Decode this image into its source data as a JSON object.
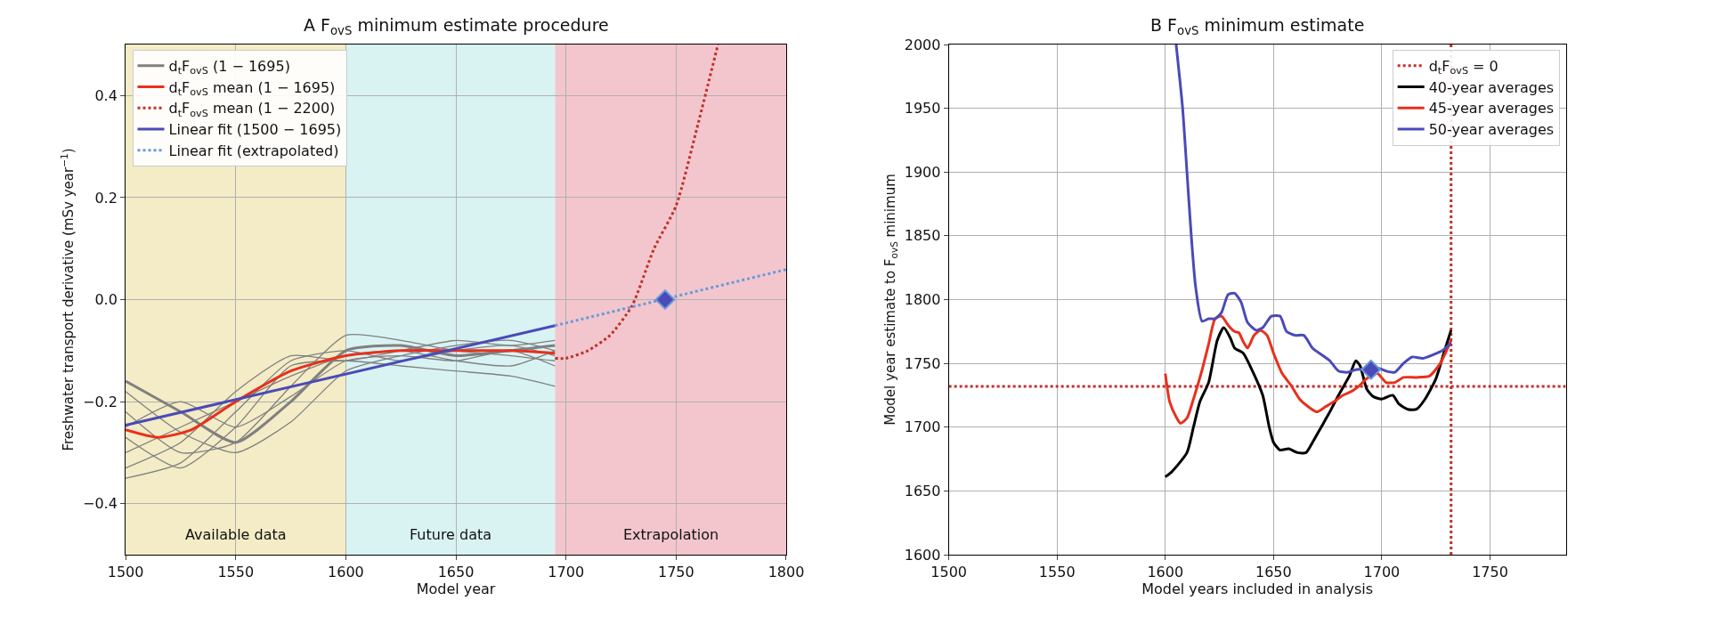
{
  "chart_data": [
    {
      "type": "line",
      "title": "A F$_{ovS}$ minimum estimate procedure",
      "xlabel": "Model year",
      "ylabel": "Freshwater transport derivative (mSv year$^{−1}$)",
      "xlim": [
        1500,
        1800
      ],
      "xticks": [
        1500,
        1550,
        1600,
        1650,
        1700,
        1750,
        1800
      ],
      "ylim": [
        -0.5,
        0.5
      ],
      "yticks": [
        {
          "value": -0.4,
          "label": "−0.4"
        },
        {
          "value": -0.2,
          "label": "−0.2"
        },
        {
          "value": 0,
          "label": "0.0"
        },
        {
          "value": 0.2,
          "label": "0.2"
        },
        {
          "value": 0.4,
          "label": "0.4"
        }
      ],
      "grid": true,
      "legend": "top left",
      "bands": [
        {
          "axis": "x",
          "from": 1500,
          "to": 1600,
          "label": "Available data",
          "color": "#f3ecc6"
        },
        {
          "axis": "x",
          "from": 1600,
          "to": 1695,
          "label": "Future data",
          "color": "#d9f3f3"
        },
        {
          "axis": "x",
          "from": 1695,
          "to": 1800,
          "label": "Extrapolation",
          "color": "#f3c6cd"
        }
      ],
      "series": [
        {
          "name": "d$_{t}$F$_{ovS}$ (1 − 1695)",
          "color": "#808080",
          "x": [
            1500,
            1525,
            1550,
            1575,
            1600,
            1625,
            1650,
            1675,
            1695
          ],
          "values": [
            -0.16,
            -0.22,
            -0.28,
            -0.2,
            -0.1,
            -0.09,
            -0.11,
            -0.1,
            -0.09
          ]
        },
        {
          "color": "#808080",
          "x": [
            1500,
            1525,
            1550,
            1575,
            1600,
            1625,
            1650,
            1675,
            1695
          ],
          "values": [
            -0.35,
            -0.32,
            -0.22,
            -0.12,
            -0.1,
            -0.12,
            -0.1,
            -0.09,
            -0.11
          ]
        },
        {
          "color": "#808080",
          "x": [
            1500,
            1525,
            1550,
            1575,
            1600,
            1625,
            1650,
            1675,
            1695
          ],
          "values": [
            -0.3,
            -0.25,
            -0.2,
            -0.15,
            -0.11,
            -0.1,
            -0.12,
            -0.13,
            -0.1
          ]
        },
        {
          "color": "#808080",
          "x": [
            1500,
            1525,
            1550,
            1575,
            1600,
            1625,
            1650,
            1675,
            1695
          ],
          "values": [
            -0.22,
            -0.3,
            -0.28,
            -0.17,
            -0.07,
            -0.08,
            -0.1,
            -0.11,
            -0.12
          ]
        },
        {
          "color": "#808080",
          "x": [
            1500,
            1525,
            1550,
            1575,
            1600,
            1625,
            1650,
            1675,
            1695
          ],
          "values": [
            -0.27,
            -0.33,
            -0.25,
            -0.13,
            -0.12,
            -0.13,
            -0.14,
            -0.15,
            -0.17
          ]
        },
        {
          "color": "#808080",
          "x": [
            1500,
            1525,
            1550,
            1575,
            1600,
            1625,
            1650,
            1675,
            1695
          ],
          "values": [
            -0.18,
            -0.26,
            -0.3,
            -0.24,
            -0.14,
            -0.11,
            -0.09,
            -0.08,
            -0.1
          ]
        },
        {
          "color": "#808080",
          "x": [
            1500,
            1525,
            1550,
            1575,
            1600,
            1625,
            1650,
            1675,
            1695
          ],
          "values": [
            -0.33,
            -0.28,
            -0.18,
            -0.11,
            -0.12,
            -0.1,
            -0.08,
            -0.09,
            -0.08
          ]
        },
        {
          "color": "#808080",
          "x": [
            1500,
            1525,
            1550,
            1575,
            1600,
            1625,
            1650,
            1675,
            1695
          ],
          "values": [
            -0.25,
            -0.2,
            -0.25,
            -0.19,
            -0.12,
            -0.11,
            -0.12,
            -0.1,
            -0.13
          ]
        },
        {
          "name": "d$_{t}$F$_{ovS}$ mean (1 − 1695)",
          "color": "#e8301c",
          "x": [
            1500,
            1515,
            1530,
            1550,
            1575,
            1600,
            1625,
            1650,
            1675,
            1695
          ],
          "values": [
            -0.255,
            -0.27,
            -0.255,
            -0.2,
            -0.14,
            -0.11,
            -0.1,
            -0.1,
            -0.1,
            -0.105
          ]
        },
        {
          "name": "d$_{t}$F$_{ovS}$ mean (1 − 2200)",
          "color": "#c0302a",
          "line_style": "dotted",
          "x": [
            1695,
            1700,
            1710,
            1720,
            1730,
            1740,
            1750,
            1760,
            1769
          ],
          "values": [
            -0.115,
            -0.115,
            -0.1,
            -0.07,
            -0.012,
            0.1,
            0.184,
            0.345,
            0.5
          ]
        },
        {
          "name": "Linear fit (1500 − 1695)",
          "color": "#4a4ab8",
          "x": [
            1500,
            1695
          ],
          "values": [
            -0.246,
            -0.051
          ]
        },
        {
          "name": "Linear fit (extrapolated)",
          "color": "#6a9ad8",
          "line_style": "dotted",
          "x": [
            1695,
            1800
          ],
          "values": [
            -0.051,
            0.059
          ]
        },
        {
          "type": "scatter",
          "marker": "diamond",
          "color": "#4a4ab8",
          "x": [
            1745
          ],
          "values": [
            0
          ]
        }
      ]
    },
    {
      "type": "line",
      "title": "B F$_{ovS}$ minimum estimate",
      "xlabel": "Model years included in analysis",
      "ylabel": "Model year estimate to F$_{ovS}$ minimum",
      "xlim": [
        1500,
        1785
      ],
      "xticks": [
        1500,
        1550,
        1600,
        1650,
        1700,
        1750
      ],
      "ylim": [
        1600,
        2000
      ],
      "yticks": [
        1600,
        1650,
        1700,
        1750,
        1800,
        1850,
        1900,
        1950,
        2000
      ],
      "grid": true,
      "legend": "top right",
      "series": [
        {
          "name": "d$_{t}$F$_{ovS}$ = 0",
          "color": "#c0302a",
          "line_style": "dotted",
          "x": [
            1732,
            1732
          ],
          "values": [
            1600,
            2000
          ]
        },
        {
          "color": "#c0302a",
          "line_style": "dotted",
          "x": [
            1500,
            1785
          ],
          "values": [
            1732,
            1732
          ]
        },
        {
          "name": "40-year averages",
          "color": "#000000",
          "x": [
            1600,
            1603,
            1610,
            1613,
            1616,
            1620,
            1624,
            1627,
            1630,
            1632,
            1636,
            1640,
            1645,
            1648,
            1650,
            1653,
            1657,
            1661,
            1665,
            1668,
            1672,
            1676,
            1680,
            1685,
            1688,
            1690,
            1693,
            1696,
            1700,
            1705,
            1708,
            1712,
            1716,
            1720,
            1725,
            1729,
            1732
          ],
          "values": [
            1661,
            1665,
            1680,
            1700,
            1720,
            1735,
            1768,
            1778,
            1770,
            1762,
            1758,
            1745,
            1725,
            1700,
            1688,
            1682,
            1683,
            1680,
            1680,
            1688,
            1700,
            1712,
            1725,
            1740,
            1752,
            1748,
            1730,
            1724,
            1722,
            1725,
            1718,
            1714,
            1714,
            1722,
            1738,
            1760,
            1776
          ]
        },
        {
          "name": "45-year averages",
          "color": "#e8301c",
          "x": [
            1600,
            1602,
            1605,
            1607,
            1610,
            1613,
            1617,
            1620,
            1623,
            1626,
            1629,
            1632,
            1634,
            1636,
            1638,
            1641,
            1644,
            1647,
            1650,
            1654,
            1658,
            1662,
            1666,
            1670,
            1674,
            1678,
            1682,
            1686,
            1690,
            1693,
            1698,
            1702,
            1706,
            1710,
            1716,
            1722,
            1727,
            1732
          ],
          "values": [
            1742,
            1720,
            1708,
            1703,
            1707,
            1722,
            1745,
            1765,
            1785,
            1787,
            1780,
            1775,
            1774,
            1767,
            1762,
            1772,
            1776,
            1772,
            1758,
            1742,
            1733,
            1722,
            1716,
            1712,
            1716,
            1720,
            1725,
            1728,
            1733,
            1738,
            1742,
            1735,
            1735,
            1739,
            1739,
            1740,
            1750,
            1768
          ]
        },
        {
          "name": "50-year averages",
          "color": "#4a4ab8",
          "x": [
            1605,
            1608,
            1610,
            1612,
            1614,
            1617,
            1620,
            1623,
            1626,
            1629,
            1632,
            1635,
            1638,
            1642,
            1645,
            1649,
            1653,
            1656,
            1660,
            1664,
            1668,
            1672,
            1676,
            1680,
            1684,
            1688,
            1692,
            1697,
            1702,
            1706,
            1710,
            1714,
            1719,
            1724,
            1728,
            1732
          ],
          "values": [
            2000,
            1950,
            1900,
            1850,
            1810,
            1783,
            1785,
            1785,
            1790,
            1804,
            1805,
            1798,
            1782,
            1776,
            1778,
            1787,
            1787,
            1775,
            1772,
            1772,
            1762,
            1757,
            1752,
            1744,
            1743,
            1745,
            1746,
            1747,
            1744,
            1743,
            1750,
            1755,
            1754,
            1757,
            1760,
            1766
          ]
        },
        {
          "type": "scatter",
          "marker": "diamond",
          "color": "#4a4ab8",
          "x": [
            1695
          ],
          "values": [
            1745
          ]
        }
      ]
    }
  ]
}
